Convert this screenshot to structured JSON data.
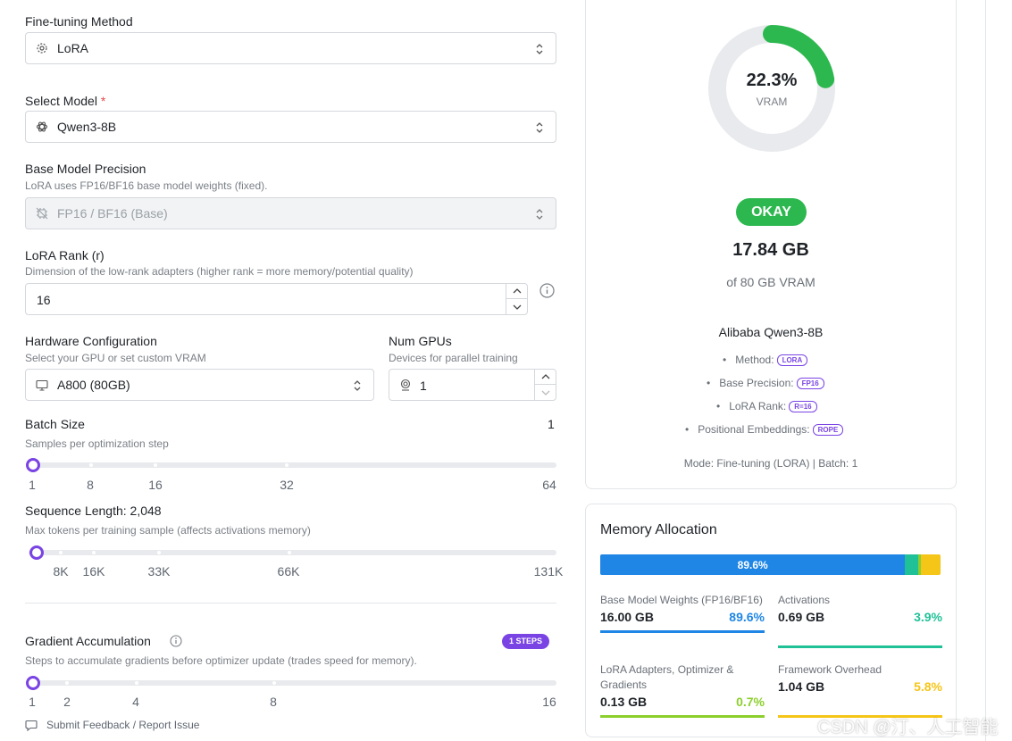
{
  "form": {
    "method": {
      "label": "Fine-tuning Method",
      "value": "LoRA"
    },
    "model": {
      "label": "Select Model",
      "required": "*",
      "value": "Qwen3-8B"
    },
    "precision": {
      "label": "Base Model Precision",
      "hint": "LoRA uses FP16/BF16 base model weights (fixed).",
      "value": "FP16 / BF16 (Base)"
    },
    "rank": {
      "label": "LoRA Rank (r)",
      "hint": "Dimension of the low-rank adapters (higher rank = more memory/potential quality)",
      "value": "16"
    },
    "hardware": {
      "label": "Hardware Configuration",
      "hint": "Select your GPU or set custom VRAM",
      "value": "A800 (80GB)"
    },
    "gpus": {
      "label": "Num GPUs",
      "hint": "Devices for parallel training",
      "value": "1"
    },
    "batch": {
      "label": "Batch Size",
      "value_text": "1",
      "hint": "Samples per optimization step",
      "ticks": [
        "1",
        "8",
        "16",
        "32",
        "64"
      ],
      "value": 1
    },
    "seq": {
      "label": "Sequence Length: 2,048",
      "hint": "Max tokens per training sample (affects activations memory)",
      "ticks": [
        "8K",
        "16K",
        "33K",
        "66K",
        "131K"
      ],
      "value": 2048
    },
    "grad": {
      "label": "Gradient Accumulation",
      "badge": "1 STEPS",
      "hint": "Steps to accumulate gradients before optimizer update (trades speed for memory).",
      "ticks": [
        "1",
        "2",
        "4",
        "8",
        "16"
      ],
      "value": 1
    },
    "feedback": "Submit Feedback / Report Issue"
  },
  "summary": {
    "percent": "22.3%",
    "percent_value": 22.3,
    "vram_label": "VRAM",
    "status": "OKAY",
    "total": "17.84 GB",
    "of_total": "of 80 GB VRAM",
    "model_name": "Alibaba Qwen3-8B",
    "details": [
      {
        "label": "Method:",
        "badge": "LORA"
      },
      {
        "label": "Base Precision:",
        "badge": "FP16"
      },
      {
        "label": "LoRA Rank:",
        "badge": "R=16"
      },
      {
        "label": "Positional Embeddings:",
        "badge": "ROPE"
      }
    ],
    "mode": "Mode: Fine-tuning (LORA) | Batch: 1"
  },
  "memory": {
    "title": "Memory Allocation",
    "bar_label": "89.6%",
    "segments": [
      {
        "pct": 89.6,
        "color": "#1f86e5"
      },
      {
        "pct": 3.9,
        "color": "#20c197"
      },
      {
        "pct": 0.7,
        "color": "#8ccf2d"
      },
      {
        "pct": 5.8,
        "color": "#f5c518"
      }
    ],
    "items": [
      {
        "label": "Base Model Weights (FP16/BF16)",
        "value": "16.00 GB",
        "pct": "89.6%",
        "color": "#1f86e5"
      },
      {
        "label": "Activations",
        "value": "0.69 GB",
        "pct": "3.9%",
        "color": "#20c197"
      },
      {
        "label": "LoRA Adapters, Optimizer & Gradients",
        "value": "0.13 GB",
        "pct": "0.7%",
        "color": "#8ccf2d"
      },
      {
        "label": "Framework Overhead",
        "value": "1.04 GB",
        "pct": "5.8%",
        "color": "#f5c518"
      }
    ]
  },
  "colors": {
    "accent": "#7a44e4",
    "ok": "#2db84f",
    "gauge_track": "#e8eaed"
  },
  "watermark": "CSDN @汀、人工智能"
}
